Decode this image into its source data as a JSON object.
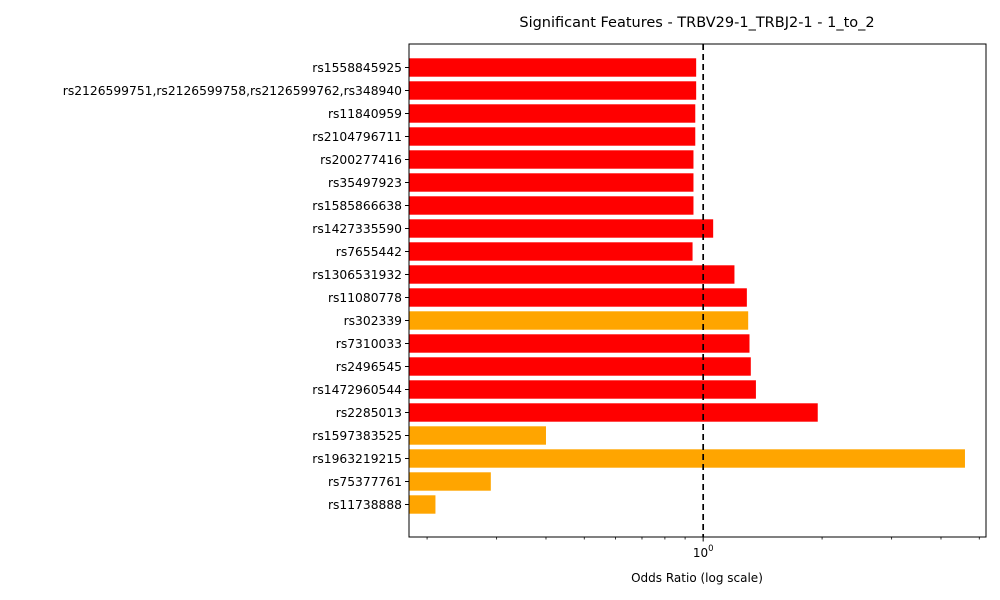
{
  "chart_data": {
    "type": "bar",
    "orientation": "horizontal",
    "title": "Significant Features - TRBV29-1_TRBJ2-1 - 1_to_2",
    "xlabel": "Odds Ratio (log scale)",
    "ylabel": "",
    "x_scale": "log",
    "xlim": [
      0.18,
      5.2
    ],
    "x_tick_labels": [
      {
        "value": 1,
        "base": "10",
        "exp": "0"
      }
    ],
    "reference_line": {
      "x": 1,
      "style": "dashed",
      "color": "#000000"
    },
    "grid": false,
    "colors": {
      "red": "#ff0000",
      "orange": "#ffa500"
    },
    "categories": [
      "rs1558845925",
      "rs2126599751,rs2126599758,rs2126599762,rs348940",
      "rs11840959",
      "rs2104796711",
      "rs200277416",
      "rs35497923",
      "rs1585866638",
      "rs1427335590",
      "rs7655442",
      "rs1306531932",
      "rs11080778",
      "rs302339",
      "rs7310033",
      "rs2496545",
      "rs1472960544",
      "rs2285013",
      "rs1597383525",
      "rs1963219215",
      "rs75377761",
      "rs11738888"
    ],
    "values": [
      0.96,
      0.96,
      0.955,
      0.955,
      0.945,
      0.945,
      0.945,
      1.06,
      0.94,
      1.2,
      1.29,
      1.3,
      1.31,
      1.32,
      1.36,
      1.95,
      0.4,
      4.6,
      0.29,
      0.21
    ],
    "bar_colors": [
      "#ff0000",
      "#ff0000",
      "#ff0000",
      "#ff0000",
      "#ff0000",
      "#ff0000",
      "#ff0000",
      "#ff0000",
      "#ff0000",
      "#ff0000",
      "#ff0000",
      "#ffa500",
      "#ff0000",
      "#ff0000",
      "#ff0000",
      "#ff0000",
      "#ffa500",
      "#ffa500",
      "#ffa500",
      "#ffa500"
    ]
  }
}
